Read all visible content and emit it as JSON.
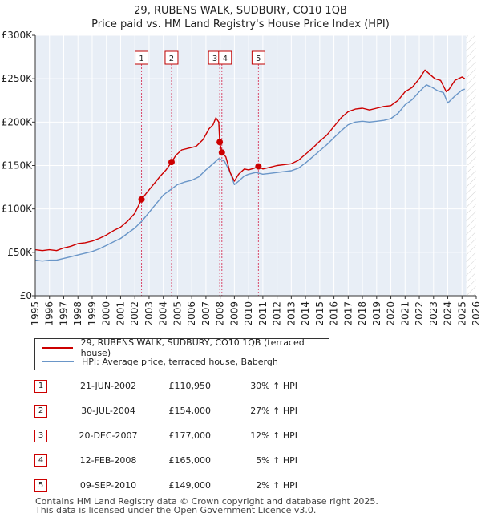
{
  "chart_data": {
    "type": "line",
    "title": "29, RUBENS WALK, SUDBURY, CO10 1QB",
    "subtitle": "Price paid vs. HM Land Registry's House Price Index (HPI)",
    "xlabel": "",
    "ylabel": "",
    "xlim": [
      1995,
      2026
    ],
    "ylim": [
      0,
      300000
    ],
    "y_ticks": [
      0,
      50000,
      100000,
      150000,
      200000,
      250000,
      300000
    ],
    "y_tick_labels": [
      "£0",
      "£50K",
      "£100K",
      "£150K",
      "£200K",
      "£250K",
      "£300K"
    ],
    "x_ticks": [
      1995,
      1996,
      1997,
      1998,
      1999,
      2000,
      2001,
      2002,
      2003,
      2004,
      2005,
      2006,
      2007,
      2008,
      2009,
      2010,
      2011,
      2012,
      2013,
      2014,
      2015,
      2016,
      2017,
      2018,
      2019,
      2020,
      2021,
      2022,
      2023,
      2024,
      2025,
      2026
    ],
    "x_tick_labels": [
      "1995",
      "1996",
      "1997",
      "1998",
      "1999",
      "2000",
      "2001",
      "2002",
      "2003",
      "2004",
      "2005",
      "2006",
      "2007",
      "2008",
      "2009",
      "2010",
      "2011",
      "2012",
      "2013",
      "2014",
      "2015",
      "2016",
      "2017",
      "2018",
      "2019",
      "2020",
      "2021",
      "2022",
      "2023",
      "2024",
      "2025",
      "2026"
    ],
    "grid": true,
    "future_hatch_from": 2025.3,
    "series": [
      {
        "name": "29, RUBENS WALK, SUDBURY, CO10 1QB (terraced house)",
        "color": "#cc0000",
        "x": [
          1995.0,
          1995.5,
          1996.0,
          1996.5,
          1997.0,
          1997.5,
          1998.0,
          1998.5,
          1999.0,
          1999.5,
          2000.0,
          2000.5,
          2001.0,
          2001.5,
          2002.0,
          2002.47,
          2002.8,
          2003.3,
          2003.8,
          2004.2,
          2004.58,
          2004.9,
          2005.3,
          2005.8,
          2006.3,
          2006.8,
          2007.2,
          2007.5,
          2007.7,
          2007.9,
          2007.97,
          2008.12,
          2008.4,
          2008.7,
          2009.0,
          2009.3,
          2009.7,
          2010.0,
          2010.4,
          2010.69,
          2011.0,
          2011.5,
          2012.0,
          2012.5,
          2013.0,
          2013.5,
          2014.0,
          2014.5,
          2015.0,
          2015.5,
          2016.0,
          2016.5,
          2017.0,
          2017.5,
          2018.0,
          2018.5,
          2019.0,
          2019.5,
          2020.0,
          2020.5,
          2021.0,
          2021.5,
          2022.0,
          2022.4,
          2022.75,
          2023.1,
          2023.5,
          2023.9,
          2024.1,
          2024.5,
          2025.0,
          2025.2
        ],
        "values": [
          53000,
          52000,
          53000,
          52000,
          55000,
          57000,
          60000,
          61000,
          63000,
          66000,
          70000,
          75000,
          79000,
          86000,
          95000,
          110950,
          118000,
          128000,
          138000,
          145000,
          154000,
          162000,
          168000,
          170000,
          172000,
          180000,
          192000,
          197000,
          205000,
          200000,
          177000,
          165000,
          160000,
          142000,
          132000,
          140000,
          146000,
          145000,
          147000,
          149000,
          146000,
          148000,
          150000,
          151000,
          152000,
          156000,
          163000,
          170000,
          178000,
          185000,
          195000,
          205000,
          212000,
          215000,
          216000,
          214000,
          216000,
          218000,
          219000,
          225000,
          235000,
          240000,
          250000,
          260000,
          255000,
          250000,
          248000,
          235000,
          238000,
          248000,
          252000,
          250000
        ]
      },
      {
        "name": "HPI: Average price, terraced house, Babergh",
        "color": "#6a96c8",
        "x": [
          1995.0,
          1995.5,
          1996.0,
          1996.5,
          1997.0,
          1997.5,
          1998.0,
          1998.5,
          1999.0,
          1999.5,
          2000.0,
          2000.5,
          2001.0,
          2001.5,
          2002.0,
          2002.5,
          2003.0,
          2003.5,
          2004.0,
          2004.5,
          2005.0,
          2005.5,
          2006.0,
          2006.5,
          2007.0,
          2007.5,
          2007.9,
          2008.3,
          2008.7,
          2009.0,
          2009.3,
          2009.7,
          2010.0,
          2010.5,
          2011.0,
          2011.5,
          2012.0,
          2012.5,
          2013.0,
          2013.5,
          2014.0,
          2014.5,
          2015.0,
          2015.5,
          2016.0,
          2016.5,
          2017.0,
          2017.5,
          2018.0,
          2018.5,
          2019.0,
          2019.5,
          2020.0,
          2020.5,
          2021.0,
          2021.5,
          2022.0,
          2022.5,
          2022.9,
          2023.3,
          2023.7,
          2024.0,
          2024.5,
          2025.0,
          2025.2
        ],
        "values": [
          41000,
          40000,
          41000,
          41000,
          43000,
          45000,
          47000,
          49000,
          51000,
          54000,
          58000,
          62000,
          66000,
          72000,
          78000,
          86000,
          96000,
          106000,
          116000,
          122000,
          128000,
          131000,
          133000,
          137000,
          145000,
          152000,
          158000,
          155000,
          142000,
          128000,
          132000,
          138000,
          140000,
          142000,
          140000,
          141000,
          142000,
          143000,
          144000,
          147000,
          153000,
          160000,
          167000,
          174000,
          182000,
          190000,
          197000,
          200000,
          201000,
          200000,
          201000,
          202000,
          204000,
          210000,
          220000,
          226000,
          235000,
          243000,
          240000,
          236000,
          234000,
          222000,
          230000,
          237000,
          238000
        ]
      }
    ],
    "markers": [
      {
        "label": "1",
        "x": 2002.47,
        "y": 110950
      },
      {
        "label": "2",
        "x": 2004.58,
        "y": 154000
      },
      {
        "label": "3",
        "x": 2007.97,
        "y": 177000
      },
      {
        "label": "4",
        "x": 2008.12,
        "y": 165000
      },
      {
        "label": "5",
        "x": 2010.69,
        "y": 149000
      }
    ]
  },
  "legend": {
    "items": [
      {
        "label": "29, RUBENS WALK, SUDBURY, CO10 1QB (terraced house)",
        "color": "#cc0000"
      },
      {
        "label": "HPI: Average price, terraced house, Babergh",
        "color": "#6a96c8"
      }
    ]
  },
  "transactions": [
    {
      "num": "1",
      "date": "21-JUN-2002",
      "price": "£110,950",
      "hpi": "30% ↑ HPI"
    },
    {
      "num": "2",
      "date": "30-JUL-2004",
      "price": "£154,000",
      "hpi": "27% ↑ HPI"
    },
    {
      "num": "3",
      "date": "20-DEC-2007",
      "price": "£177,000",
      "hpi": "12% ↑ HPI"
    },
    {
      "num": "4",
      "date": "12-FEB-2008",
      "price": "£165,000",
      "hpi": "5% ↑ HPI"
    },
    {
      "num": "5",
      "date": "09-SEP-2010",
      "price": "£149,000",
      "hpi": "2% ↑ HPI"
    }
  ],
  "footer": {
    "line1": "Contains HM Land Registry data © Crown copyright and database right 2025.",
    "line2": "This data is licensed under the Open Government Licence v3.0."
  }
}
